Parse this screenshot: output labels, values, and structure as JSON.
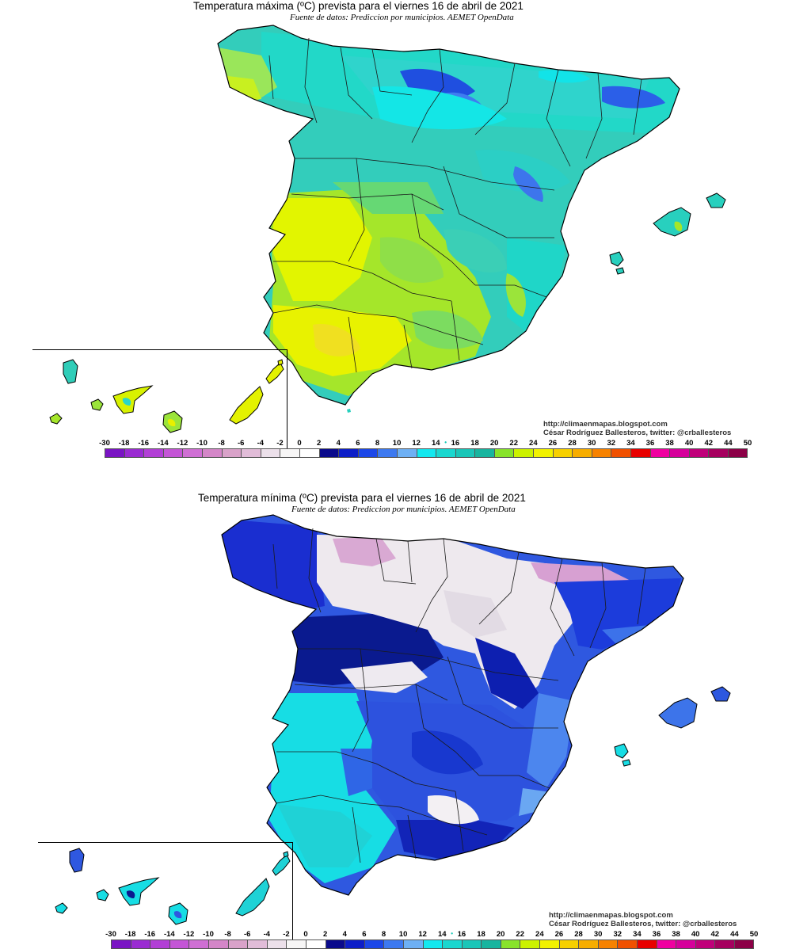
{
  "maps": [
    {
      "id": "max",
      "title": "Temperatura máxima (ºC) prevista para el viernes 16 de abril de 2021",
      "subtitle": "Fuente de datos: Prediccion por municipios. AEMET OpenData",
      "credit_line1": "http://climaenmapas.blogspot.com",
      "credit_line2": "César Rodríguez Ballesteros, twitter: @crballesteros",
      "palette_main": [
        "#35c9b6",
        "#2ed6c6",
        "#12e6e0",
        "#b0f000",
        "#e8f000",
        "#c9f33a"
      ]
    },
    {
      "id": "min",
      "title": "Temperatura mínima (ºC) prevista para el viernes 16 de abril de 2021",
      "subtitle": "Fuente de datos: Prediccion por municipios. AEMET OpenData",
      "credit_line1": "http://climaenmapas.blogspot.com",
      "credit_line2": "César Rodríguez Ballesteros, twitter: @crballesteros",
      "palette_main": [
        "#1a2fd6",
        "#0b1aa8",
        "#3e69e8",
        "#13e6e8",
        "#efe8ee",
        "#d9a6d6"
      ]
    }
  ],
  "legend": {
    "labels": [
      "-30",
      "-18",
      "-16",
      "-14",
      "-12",
      "-10",
      "-8",
      "-6",
      "-4",
      "-2",
      "0",
      "2",
      "4",
      "6",
      "8",
      "10",
      "12",
      "14",
      "16",
      "18",
      "20",
      "22",
      "24",
      "26",
      "28",
      "30",
      "32",
      "34",
      "36",
      "38",
      "40",
      "42",
      "44",
      "50"
    ],
    "colors": [
      "#7a14c4",
      "#9a2bd2",
      "#b23fd6",
      "#c455d6",
      "#cf6fd4",
      "#d486c8",
      "#d9a2c9",
      "#e1bcd8",
      "#ece0ea",
      "#f7f6f6",
      "#ffffff",
      "#0a0a8c",
      "#0d1ec8",
      "#1c47e8",
      "#3d79f0",
      "#6eb0f4",
      "#13e8ef",
      "#1ad7cf",
      "#1ac6b8",
      "#18b59f",
      "#88e32b",
      "#ccf200",
      "#f2f200",
      "#f7d000",
      "#f7ad00",
      "#f78200",
      "#f05000",
      "#e80000",
      "#f000a0",
      "#d6009b",
      "#c0007a",
      "#a6005f",
      "#8c0047"
    ],
    "marker_index": 18
  }
}
